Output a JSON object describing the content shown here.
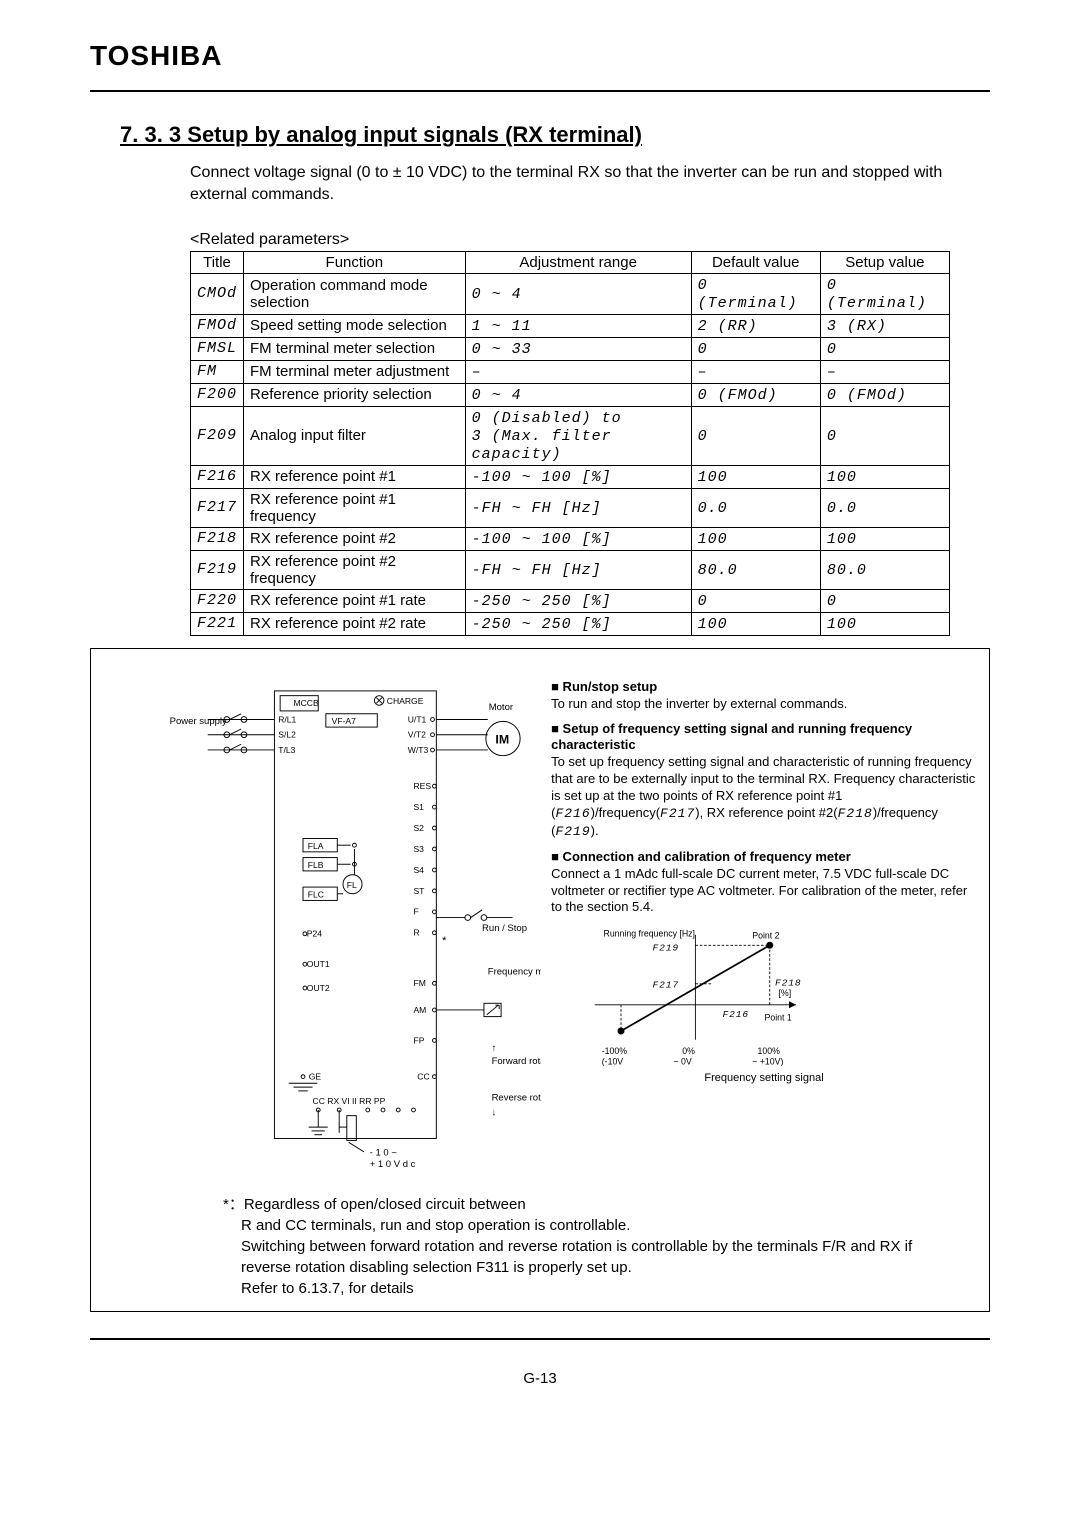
{
  "brand": "TOSHIBA",
  "section": "7. 3. 3 Setup by analog input signals (RX terminal)",
  "intro": "Connect voltage signal (0 to ± 10 VDC) to the terminal RX so that the inverter can be run and stopped with external commands.",
  "relatedLabel": "<Related parameters>",
  "table": {
    "headers": [
      "Title",
      "Function",
      "Adjustment range",
      "Default value",
      "Setup value"
    ],
    "rows": [
      {
        "title": "CMOd",
        "func": "Operation command mode selection",
        "range": "0 ~ 4",
        "def": "0 (Terminal)",
        "setup": "0 (Terminal)"
      },
      {
        "title": "FMOd",
        "func": "Speed setting mode selection",
        "range": "1 ~ 11",
        "def": "2 (RR)",
        "setup": "3 (RX)"
      },
      {
        "title": "FMSL",
        "func": "FM terminal meter selection",
        "range": "0 ~ 33",
        "def": "0",
        "setup": "0"
      },
      {
        "title": "FM",
        "func": "FM terminal meter adjustment",
        "range": "–",
        "def": "–",
        "setup": "–"
      },
      {
        "title": "F200",
        "func": "Reference priority selection",
        "range": "0 ~ 4",
        "def": "0 (FMOd)",
        "setup": "0 (FMOd)"
      },
      {
        "title": "F209",
        "func": "Analog input filter",
        "range": "0 (Disabled) to\n3 (Max. filter capacity)",
        "def": "0",
        "setup": "0"
      },
      {
        "title": "F216",
        "func": "RX reference point #1",
        "range": "-100 ~ 100 [%]",
        "def": "100",
        "setup": "100"
      },
      {
        "title": "F217",
        "func": "RX reference point #1 frequency",
        "range": "-FH ~ FH [Hz]",
        "def": "0.0",
        "setup": "0.0"
      },
      {
        "title": "F218",
        "func": "RX reference point #2",
        "range": "-100 ~ 100 [%]",
        "def": "100",
        "setup": "100"
      },
      {
        "title": "F219",
        "func": "RX reference point #2 frequency",
        "range": "-FH ~ FH [Hz]",
        "def": "80.0",
        "setup": "80.0"
      },
      {
        "title": "F220",
        "func": "RX reference point #1 rate",
        "range": "-250 ~ 250 [%]",
        "def": "0",
        "setup": "0"
      },
      {
        "title": "F221",
        "func": "RX reference point #2 rate",
        "range": "-250 ~ 250 [%]",
        "def": "100",
        "setup": "100"
      }
    ]
  },
  "diagram": {
    "mccb": "MCCB",
    "charge": "CHARGE",
    "power": "Power supply",
    "vf": "VF-A7",
    "phases_in": [
      "R/L1",
      "S/L2",
      "T/L3"
    ],
    "phases_out": [
      "U/T1",
      "V/T2",
      "W/T3"
    ],
    "motor": "Motor",
    "im": "IM",
    "terminals": [
      "RES",
      "S1",
      "S2",
      "S3",
      "S4",
      "ST",
      "F",
      "R"
    ],
    "fla": "FLA",
    "flb": "FLB",
    "flc": "FLC",
    "fl": "FL",
    "p24": "P24",
    "out1": "OUT1",
    "out2": "OUT2",
    "fm": "FM",
    "am": "AM",
    "fp": "FP",
    "ge": "GE",
    "cc": "CC",
    "bottom": "CC  RX   VI  II RR PP",
    "runstop": "Run / Stop",
    "runstop_star": "*",
    "freqmeter": "Frequency meter",
    "forward": "Forward rotation",
    "reverse": "Reverse rotation",
    "vrange": "- 1 0 ~\n+ 1 0 V d c"
  },
  "notes": {
    "h1": "■ Run/stop setup",
    "p1": "To run and stop the inverter by external commands.",
    "h2": "■ Setup of frequency setting signal and running frequency characteristic",
    "p2a": "To set up frequency setting signal and characteristic of running frequency that are to be externally input to the terminal RX. Frequency characteristic is set up at the two points of RX reference point #1 (",
    "p2b": ")/frequency(",
    "p2c": "), RX reference point #2(",
    "p2d": ")/frequency (",
    "p2e": ").",
    "ref216": "F216",
    "ref217": "F217",
    "ref218": "F218",
    "ref219": "F219",
    "h3": "■ Connection and calibration of frequency meter",
    "p3": "Connect a 1 mAdc full-scale DC current meter, 7.5 VDC full-scale DC voltmeter or rectifier type AC voltmeter. For calibration of the meter, refer to the section 5.4.",
    "chart": {
      "ylabel": "Running frequency [Hz]",
      "point1": "Point 1",
      "point2": "Point 2",
      "f216": "F216",
      "f217": "F217",
      "f218": "F218",
      "f219": "F219",
      "percent": "[%]",
      "xl": "-100%",
      "xm": "0%",
      "xr": "100%",
      "vl": "(-10V",
      "vm": "~   0V",
      "vr": "~   +10V)",
      "xlabel": "Frequency setting signal"
    }
  },
  "bottom": {
    "lead": "*：Regardless of open/closed circuit between",
    "l1": "R and CC terminals, run and stop operation is controllable.",
    "l2": "Switching between forward rotation and reverse rotation is controllable by the terminals F/R and RX if reverse rotation disabling selection F311 is properly set up.",
    "l3": "Refer to 6.13.7, for details"
  },
  "pagenum": "G-13"
}
